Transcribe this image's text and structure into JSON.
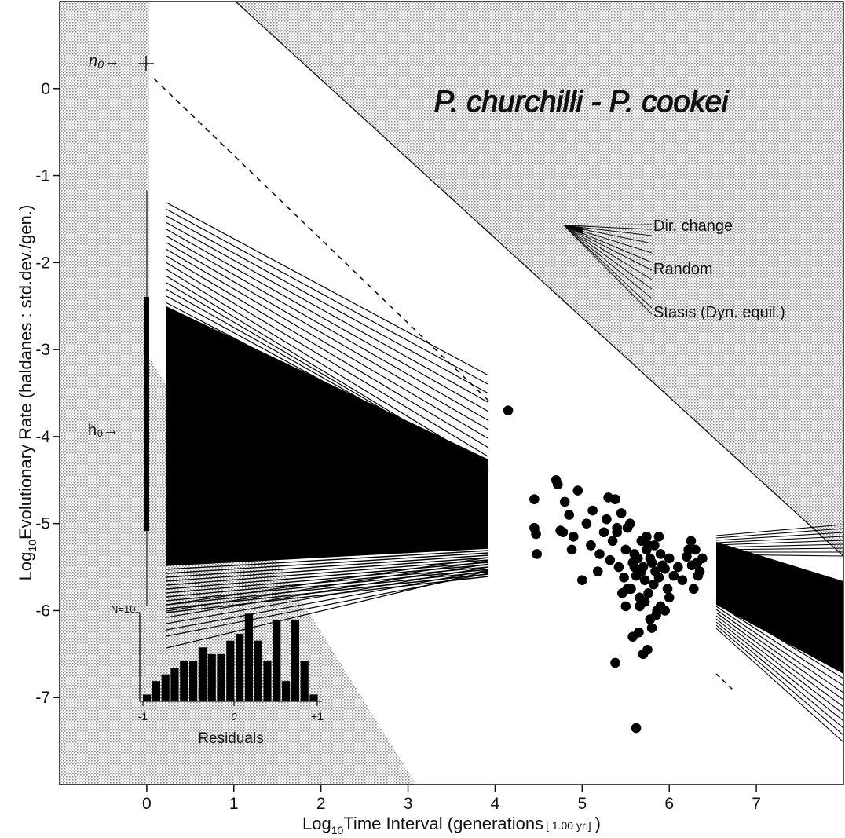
{
  "chart_data": {
    "type": "scatter",
    "title": "P. churchilli - P. cookei",
    "xlabel_prefix": "Log",
    "xlabel_sub": "10",
    "xlabel_main": "Time Interval (generations",
    "xlabel_unit": "[ 1.00 yr.]",
    "xlabel_close": ")",
    "ylabel_prefix": "Log",
    "ylabel_sub": "10",
    "ylabel_main": "Evolutionary Rate (haldanes : std.dev./gen.)",
    "xlim": [
      -1,
      8
    ],
    "ylim": [
      -8,
      1
    ],
    "xticks": [
      0,
      1,
      2,
      3,
      4,
      5,
      6,
      7
    ],
    "yticks": [
      0,
      -1,
      -2,
      -3,
      -4,
      -5,
      -6,
      -7
    ],
    "grid": false,
    "annotations": {
      "n0": "n₀→",
      "h0": "h₀→",
      "dir_change": "Dir. change",
      "random": "Random",
      "stasis": "Stasis (Dyn. equil.)"
    },
    "hist": {
      "n_label": "N=10",
      "xlabel": "Residuals",
      "tick_left": "-1",
      "tick_mid": "0",
      "tick_right": "+1",
      "values": [
        1,
        3,
        4,
        5,
        6,
        6,
        8,
        7,
        7,
        9,
        10,
        13,
        9,
        6,
        12,
        3,
        12,
        6,
        1
      ]
    },
    "series": [
      {
        "x": [
          4.15,
          4.45,
          4.45,
          4.47,
          4.48,
          4.7,
          4.72,
          4.75,
          4.78,
          4.8,
          4.85,
          4.88,
          4.9,
          4.95,
          5.0,
          5.05,
          5.1,
          5.12,
          5.18,
          5.2,
          5.25,
          5.28,
          5.3,
          5.32,
          5.35,
          5.38,
          5.4,
          5.42,
          5.45,
          5.48,
          5.5,
          5.52,
          5.55,
          5.58,
          5.6,
          5.62,
          5.64,
          5.66,
          5.68,
          5.7,
          5.72,
          5.74,
          5.76,
          5.78,
          5.8,
          5.82,
          5.84,
          5.86,
          5.88,
          5.9,
          5.92,
          5.95,
          5.98,
          6.0,
          6.05,
          6.1,
          6.15,
          6.2,
          6.25,
          6.28,
          6.3,
          6.32,
          6.35,
          6.38,
          5.38,
          5.58,
          5.62,
          5.7,
          5.75,
          5.8,
          5.85,
          5.9,
          5.95,
          6.0,
          5.65,
          5.6,
          5.72,
          5.78,
          5.83,
          5.88,
          5.46,
          5.5,
          5.56,
          5.66,
          5.76,
          6.22,
          6.26,
          6.33,
          5.4,
          5.52,
          5.68,
          5.74
        ],
        "y": [
          -3.7,
          -4.72,
          -5.05,
          -5.12,
          -5.35,
          -4.5,
          -4.55,
          -5.08,
          -5.1,
          -4.75,
          -4.9,
          -5.3,
          -5.15,
          -4.62,
          -5.65,
          -5.0,
          -5.25,
          -4.85,
          -5.55,
          -5.35,
          -5.1,
          -4.95,
          -4.7,
          -5.42,
          -5.2,
          -4.72,
          -5.05,
          -5.5,
          -4.88,
          -5.62,
          -5.3,
          -5.75,
          -5.0,
          -5.45,
          -5.35,
          -5.6,
          -5.4,
          -5.85,
          -5.55,
          -5.5,
          -5.65,
          -5.3,
          -5.8,
          -5.4,
          -5.45,
          -5.7,
          -5.55,
          -6.0,
          -5.62,
          -5.35,
          -5.48,
          -5.52,
          -5.75,
          -5.4,
          -5.6,
          -5.5,
          -5.65,
          -5.38,
          -5.2,
          -5.75,
          -5.3,
          -5.45,
          -5.55,
          -5.4,
          -6.6,
          -6.3,
          -7.35,
          -6.5,
          -6.45,
          -6.2,
          -6.05,
          -5.95,
          -6.0,
          -5.85,
          -6.25,
          -5.5,
          -5.9,
          -6.1,
          -5.25,
          -5.15,
          -5.8,
          -5.95,
          -5.75,
          -5.95,
          -5.25,
          -5.3,
          -5.48,
          -5.6,
          -5.1,
          -5.05,
          -5.2,
          -5.15
        ]
      }
    ]
  }
}
